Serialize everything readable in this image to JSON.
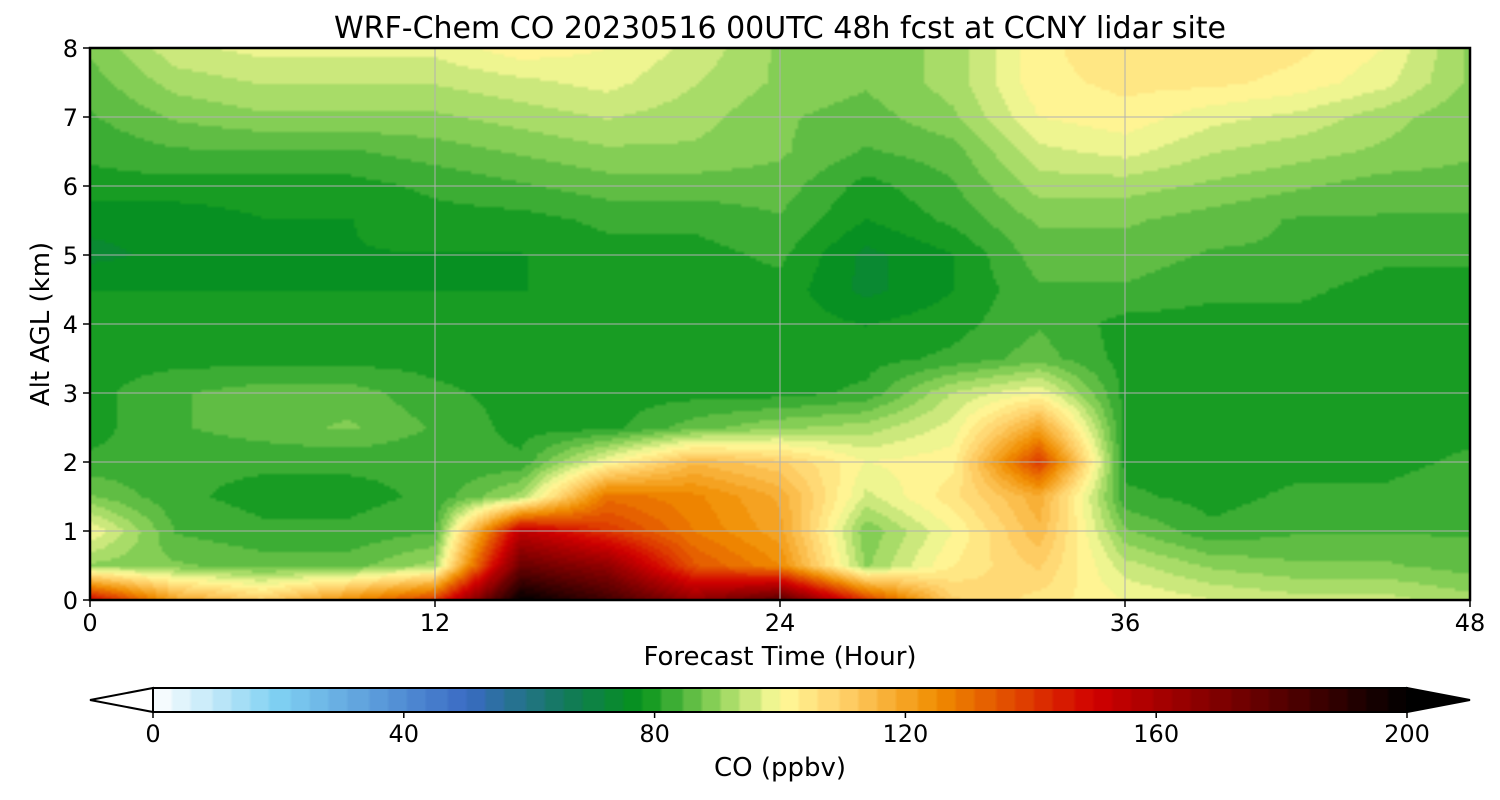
{
  "chart_data": {
    "type": "heatmap",
    "title": "WRF-Chem CO  20230516 00UTC 48h fcst at CCNY lidar site",
    "xlabel": "Forecast Time (Hour)",
    "ylabel": "Alt AGL (km)",
    "xlim": [
      0,
      48
    ],
    "ylim": [
      0,
      8
    ],
    "xticks": [
      0,
      12,
      24,
      36,
      48
    ],
    "yticks": [
      0,
      1,
      2,
      3,
      4,
      5,
      6,
      7,
      8
    ],
    "grid": true,
    "colorbar": {
      "label": "CO  (ppbv)",
      "range": [
        0,
        200
      ],
      "ticks": [
        0,
        40,
        80,
        120,
        160,
        200
      ],
      "extend": "both",
      "stops": [
        {
          "value": 0,
          "color": "#ffffff"
        },
        {
          "value": 20,
          "color": "#7fd0f2"
        },
        {
          "value": 50,
          "color": "#3a6bc4"
        },
        {
          "value": 66,
          "color": "#127a5a"
        },
        {
          "value": 78,
          "color": "#05931a"
        },
        {
          "value": 90,
          "color": "#8fd35a"
        },
        {
          "value": 100,
          "color": "#fffb9a"
        },
        {
          "value": 110,
          "color": "#ffd06a"
        },
        {
          "value": 125,
          "color": "#f08d00"
        },
        {
          "value": 150,
          "color": "#d10000"
        },
        {
          "value": 175,
          "color": "#6b0000"
        },
        {
          "value": 200,
          "color": "#000000"
        }
      ]
    },
    "x": [
      0,
      3,
      6,
      9,
      12,
      15,
      18,
      21,
      24,
      27,
      30,
      33,
      36,
      39,
      42,
      45,
      48
    ],
    "y": [
      0,
      0.5,
      1,
      1.5,
      2,
      2.5,
      3,
      3.5,
      4,
      4.5,
      5,
      5.5,
      6,
      6.5,
      7,
      7.5,
      8
    ],
    "z": [
      [
        150,
        120,
        110,
        125,
        140,
        200,
        185,
        165,
        180,
        140,
        110,
        105,
        100,
        97,
        95,
        95,
        92
      ],
      [
        90,
        88,
        86,
        86,
        92,
        175,
        165,
        135,
        125,
        90,
        103,
        110,
        95,
        90,
        88,
        88,
        86
      ],
      [
        100,
        84,
        82,
        82,
        84,
        155,
        140,
        128,
        120,
        88,
        100,
        115,
        88,
        82,
        84,
        84,
        84
      ],
      [
        88,
        82,
        80,
        80,
        82,
        92,
        130,
        126,
        118,
        96,
        105,
        118,
        82,
        80,
        82,
        82,
        84
      ],
      [
        82,
        82,
        82,
        82,
        82,
        82,
        100,
        115,
        110,
        100,
        102,
        140,
        80,
        80,
        80,
        80,
        82
      ],
      [
        80,
        84,
        86,
        88,
        84,
        80,
        80,
        86,
        90,
        92,
        98,
        120,
        80,
        80,
        80,
        80,
        80
      ],
      [
        80,
        84,
        86,
        86,
        82,
        80,
        80,
        80,
        80,
        82,
        94,
        100,
        80,
        80,
        80,
        80,
        80
      ],
      [
        80,
        80,
        80,
        80,
        80,
        80,
        80,
        80,
        80,
        80,
        82,
        86,
        80,
        80,
        80,
        80,
        80
      ],
      [
        80,
        80,
        80,
        80,
        80,
        80,
        80,
        80,
        80,
        78,
        80,
        84,
        80,
        80,
        80,
        80,
        80
      ],
      [
        78,
        78,
        78,
        78,
        78,
        78,
        80,
        80,
        80,
        74,
        78,
        84,
        84,
        82,
        82,
        80,
        80
      ],
      [
        74,
        76,
        76,
        78,
        78,
        78,
        80,
        80,
        82,
        74,
        78,
        86,
        86,
        84,
        84,
        82,
        82
      ],
      [
        76,
        76,
        78,
        78,
        80,
        80,
        82,
        82,
        84,
        78,
        82,
        88,
        88,
        86,
        84,
        84,
        84
      ],
      [
        80,
        80,
        80,
        80,
        82,
        84,
        86,
        86,
        86,
        80,
        84,
        92,
        92,
        90,
        88,
        86,
        86
      ],
      [
        82,
        84,
        84,
        84,
        86,
        88,
        90,
        90,
        88,
        84,
        86,
        96,
        98,
        94,
        92,
        90,
        88
      ],
      [
        84,
        88,
        90,
        90,
        90,
        92,
        94,
        92,
        88,
        86,
        90,
        100,
        102,
        98,
        96,
        92,
        88
      ],
      [
        86,
        92,
        94,
        94,
        94,
        96,
        98,
        94,
        90,
        88,
        92,
        102,
        104,
        104,
        102,
        98,
        90
      ],
      [
        88,
        96,
        98,
        98,
        98,
        102,
        100,
        96,
        90,
        88,
        92,
        102,
        106,
        106,
        104,
        100,
        90
      ]
    ]
  }
}
